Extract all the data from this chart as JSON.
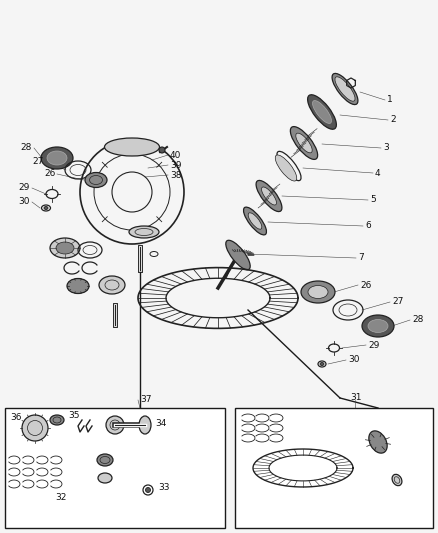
{
  "bg_color": "#f5f5f5",
  "fig_width": 4.38,
  "fig_height": 5.33,
  "dpi": 100,
  "line_color": "#1a1a1a",
  "part_color": "#444444",
  "part_color_light": "#aaaaaa",
  "part_color_dark": "#222222",
  "part_fill_dark": "#555555",
  "part_fill_mid": "#888888",
  "part_fill_light": "#cccccc"
}
